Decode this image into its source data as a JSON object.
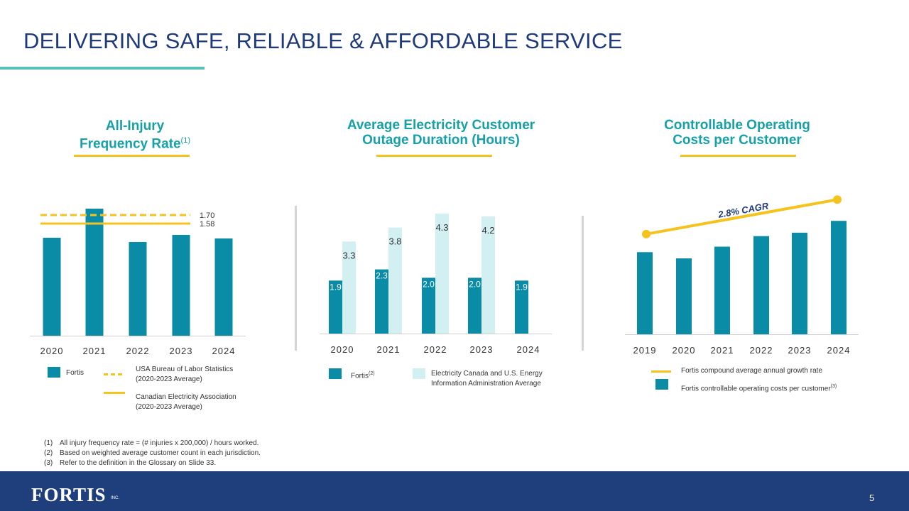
{
  "slide": {
    "title": "DELIVERING SAFE, RELIABLE & AFFORDABLE SERVICE",
    "page_number": "5",
    "logo": "FORTIS",
    "logo_suffix": "INC.",
    "footnotes": [
      {
        "num": "(1)",
        "text": "All injury frequency rate = (# injuries x 200,000) / hours worked."
      },
      {
        "num": "(2)",
        "text": "Based on weighted average customer count in each jurisdiction."
      },
      {
        "num": "(3)",
        "text": "Refer to the definition in the Glossary on Slide 33."
      }
    ]
  },
  "colors": {
    "primary": "#0a8ba6",
    "light": "#d2eff1",
    "accent": "#f5c31d",
    "title": "#1f3a7a",
    "subtitle": "#17a0a8",
    "footer": "#1f3f7c"
  },
  "chart1": {
    "title_line1": "All-Injury",
    "title_line2": "Frequency Rate",
    "title_sup": "(1)"
  },
  "chart2": {
    "title_line1": "Average Electricity Customer",
    "title_line2": "Outage Duration (Hours)"
  },
  "chart3": {
    "title_line1": "Controllable Operating",
    "title_line2": "Costs per Customer"
  },
  "legend": {
    "c1_fortis": "Fortis",
    "c1_usa_line1": "USA Bureau of Labor Statistics",
    "c1_usa_line2": "(2020-2023 Average)",
    "c1_cea_line1": "Canadian Electricity Association",
    "c1_cea_line2": "(2020-2023 Average)",
    "c2_fortis": "Fortis",
    "c2_fortis_sup": "(2)",
    "c2_other_line1": "Electricity Canada and U.S. Energy",
    "c2_other_line2": "Information Administration Average",
    "c3_cagr": "Fortis compound average annual growth rate",
    "c3_costs": "Fortis controllable operating costs per customer",
    "c3_costs_sup": "(3)"
  },
  "chart_data": [
    {
      "type": "bar",
      "title": "All-Injury Frequency Rate",
      "categories": [
        "2020",
        "2021",
        "2022",
        "2023",
        "2024"
      ],
      "series": [
        {
          "name": "Fortis",
          "values": [
            1.38,
            1.79,
            1.32,
            1.42,
            1.37
          ]
        }
      ],
      "reference_lines": [
        {
          "name": "USA Bureau of Labor Statistics (2020-2023 Average)",
          "value": 1.7,
          "label": "1.70",
          "style": "dashed"
        },
        {
          "name": "Canadian Electricity Association (2020-2023 Average)",
          "value": 1.58,
          "label": "1.58",
          "style": "solid"
        }
      ],
      "ylim": [
        0,
        2.0
      ]
    },
    {
      "type": "bar",
      "title": "Average Electricity Customer Outage Duration (Hours)",
      "categories": [
        "2020",
        "2021",
        "2022",
        "2023",
        "2024"
      ],
      "series": [
        {
          "name": "Fortis",
          "values": [
            1.9,
            2.3,
            2.0,
            2.0,
            1.9
          ],
          "labels": [
            "1.9",
            "2.3",
            "2.0",
            "2.0",
            "1.9"
          ]
        },
        {
          "name": "Electricity Canada and U.S. Energy Information Administration Average",
          "values": [
            3.3,
            3.8,
            4.3,
            4.2,
            null
          ],
          "labels": [
            "3.3",
            "3.8",
            "4.3",
            "4.2",
            ""
          ]
        }
      ],
      "ylim": [
        0,
        4.3
      ]
    },
    {
      "type": "bar",
      "title": "Controllable Operating Costs per Customer",
      "categories": [
        "2019",
        "2020",
        "2021",
        "2022",
        "2023",
        "2024"
      ],
      "series": [
        {
          "name": "Fortis controllable operating costs per customer",
          "values": [
            100,
            92.4,
            106.7,
            119.5,
            123.7,
            138.1
          ]
        }
      ],
      "trend": {
        "name": "Fortis compound average annual growth rate",
        "label": "2.8% CAGR",
        "start": 122,
        "end": 164
      },
      "ylim": [
        0,
        140
      ]
    }
  ]
}
